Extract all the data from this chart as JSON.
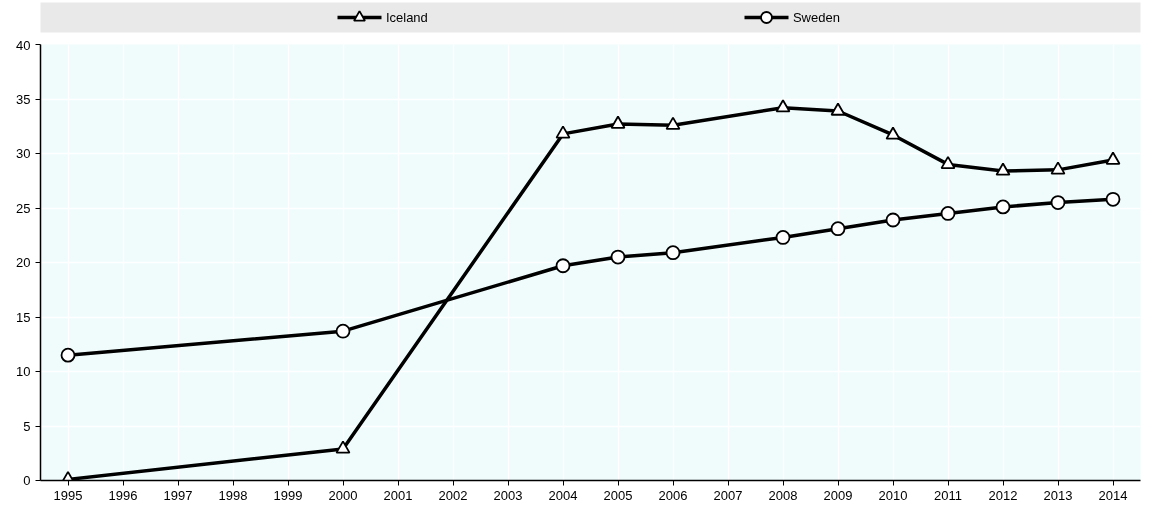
{
  "chart_data": {
    "type": "line",
    "line_style": "solid",
    "grid": true,
    "legend": "top",
    "x": [
      1995,
      2000,
      2004,
      2005,
      2006,
      2008,
      2009,
      2010,
      2011,
      2012,
      2013,
      2014
    ],
    "xlim": [
      1994.5,
      2014.5
    ],
    "xticks": [
      1995,
      1996,
      1997,
      1998,
      1999,
      2000,
      2001,
      2002,
      2003,
      2004,
      2005,
      2006,
      2007,
      2008,
      2009,
      2010,
      2011,
      2012,
      2013,
      2014
    ],
    "ylim": [
      0,
      40
    ],
    "yticks": [
      0,
      5,
      10,
      15,
      20,
      25,
      30,
      35,
      40
    ],
    "series": [
      {
        "name": "Iceland",
        "color": "#000000",
        "marker": "triangle",
        "values": [
          0.1,
          2.9,
          31.8,
          32.7,
          32.6,
          34.2,
          33.9,
          31.7,
          29.0,
          28.4,
          28.5,
          29.4
        ]
      },
      {
        "name": "Sweden",
        "color": "#000000",
        "marker": "circle",
        "values": [
          11.5,
          13.7,
          19.7,
          20.5,
          20.9,
          22.3,
          23.1,
          23.9,
          24.5,
          25.1,
          25.5,
          25.8
        ]
      }
    ]
  }
}
